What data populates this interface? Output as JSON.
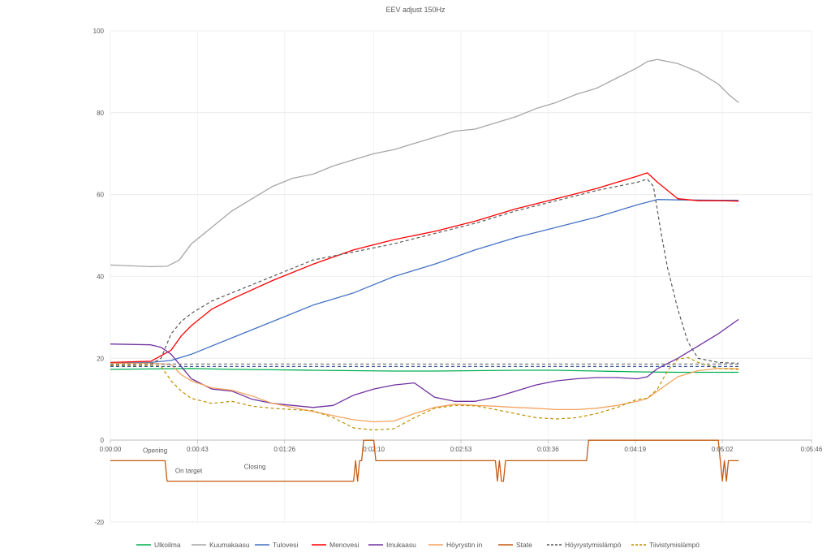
{
  "chart_data": {
    "type": "line",
    "title": "EEV adjust 150Hz",
    "xlabel": "",
    "ylabel": "",
    "ylim": [
      -20,
      100
    ],
    "y_ticks": [
      "100",
      "80",
      "60",
      "40",
      "20",
      "0",
      "-20"
    ],
    "x_ticks": [
      "0:00:00",
      "0:00:43",
      "0:01:26",
      "0:02:10",
      "0:02:53",
      "0:03:36",
      "0:04:19",
      "0:05:02",
      "0:05:46"
    ],
    "x_tick_values": [
      0,
      43,
      86,
      130,
      173,
      216,
      259,
      302,
      346
    ],
    "xlim": [
      0,
      346
    ],
    "grid": true,
    "legend_position": "bottom",
    "annotations": [
      {
        "text": "Opening",
        "x": 16,
        "y": -3
      },
      {
        "text": "On target",
        "x": 32,
        "y": -8
      },
      {
        "text": "Closing",
        "x": 66,
        "y": -7
      }
    ],
    "series": [
      {
        "name": "Ulkoilma",
        "color": "#00b050",
        "style": "solid",
        "x": [
          0,
          20,
          40,
          60,
          80,
          100,
          120,
          140,
          160,
          180,
          200,
          220,
          240,
          260,
          280,
          300,
          310
        ],
        "y": [
          17.3,
          17.4,
          17.5,
          17.3,
          17.2,
          17.1,
          17.0,
          16.9,
          16.9,
          17.0,
          17.1,
          17.1,
          16.9,
          16.7,
          16.6,
          16.6,
          16.6
        ]
      },
      {
        "name": "Kuumakaasu",
        "color": "#a6a6a6",
        "style": "solid",
        "x": [
          0,
          10,
          20,
          28,
          34,
          40,
          50,
          60,
          70,
          80,
          90,
          100,
          110,
          120,
          130,
          140,
          150,
          160,
          170,
          180,
          190,
          200,
          210,
          220,
          230,
          240,
          250,
          260,
          265,
          270,
          280,
          290,
          300,
          305,
          310
        ],
        "y": [
          42.8,
          42.6,
          42.4,
          42.5,
          44,
          48,
          52,
          56,
          59,
          62,
          64,
          65,
          67,
          68.5,
          70,
          71,
          72.5,
          74,
          75.5,
          76,
          77.5,
          79,
          81,
          82.5,
          84.5,
          86,
          88.5,
          91,
          92.5,
          93,
          92,
          90,
          87,
          84.5,
          82.5
        ]
      },
      {
        "name": "Tulovesi",
        "color": "#4472c4",
        "style": "solid",
        "x": [
          0,
          20,
          30,
          40,
          60,
          80,
          100,
          120,
          140,
          160,
          180,
          200,
          220,
          240,
          260,
          270,
          280,
          300,
          310
        ],
        "y": [
          19,
          19,
          19.5,
          21,
          25,
          29,
          33,
          36,
          40,
          43,
          46.5,
          49.5,
          52,
          54.5,
          57.5,
          58.8,
          58.7,
          58.6,
          58.6
        ]
      },
      {
        "name": "Menovesi",
        "color": "#ff0000",
        "style": "solid",
        "x": [
          0,
          20,
          30,
          35,
          40,
          50,
          60,
          80,
          100,
          120,
          140,
          160,
          180,
          200,
          220,
          240,
          260,
          265,
          270,
          280,
          290,
          300,
          310
        ],
        "y": [
          19,
          19.3,
          22,
          25.5,
          28,
          32,
          34.5,
          39,
          43,
          46.5,
          49,
          51,
          53.5,
          56.5,
          59,
          61.5,
          64.5,
          65.3,
          63,
          59,
          58.5,
          58.5,
          58.4
        ]
      },
      {
        "name": "Imukaasu",
        "color": "#7030a0",
        "style": "solid",
        "x": [
          0,
          10,
          20,
          25,
          30,
          35,
          40,
          50,
          60,
          70,
          80,
          90,
          100,
          110,
          120,
          130,
          140,
          150,
          160,
          170,
          180,
          190,
          200,
          210,
          220,
          230,
          240,
          250,
          260,
          265,
          270,
          280,
          290,
          300,
          310
        ],
        "y": [
          23.5,
          23.4,
          23.3,
          22.7,
          21,
          18,
          15,
          12.5,
          12,
          10,
          9,
          8.5,
          8,
          8.5,
          11,
          12.5,
          13.5,
          14,
          10.5,
          9.5,
          9.5,
          10.5,
          12,
          13.5,
          14.5,
          15,
          15.3,
          15.3,
          15,
          15.5,
          17.5,
          20,
          23,
          26,
          29.5
        ]
      },
      {
        "name": "Höyrystin in",
        "color": "#f4a460",
        "style": "solid",
        "x": [
          0,
          20,
          30,
          35,
          40,
          50,
          60,
          70,
          80,
          90,
          100,
          110,
          120,
          130,
          140,
          150,
          160,
          170,
          180,
          190,
          200,
          210,
          220,
          230,
          240,
          250,
          260,
          265,
          270,
          280,
          290,
          300,
          310
        ],
        "y": [
          18.8,
          18.8,
          18.5,
          16,
          14.5,
          12.8,
          12.2,
          10.8,
          9,
          8,
          7,
          6,
          5,
          4.5,
          4.7,
          6.5,
          8,
          8.8,
          8.5,
          8.3,
          8,
          7.8,
          7.5,
          7.5,
          7.8,
          8.5,
          9.5,
          10.2,
          12,
          15.5,
          17,
          17.5,
          17.5
        ]
      },
      {
        "name": "State",
        "color": "#c55a11",
        "style": "solid",
        "x": [
          0,
          27,
          28,
          29,
          120,
          121,
          122,
          123,
          124,
          125,
          130,
          131,
          190,
          191,
          192,
          193,
          194,
          195,
          235,
          236,
          300,
          301,
          302,
          303,
          304,
          305,
          310
        ],
        "y": [
          -5,
          -5,
          -10,
          -10,
          -10,
          -5,
          -10,
          -5,
          -5,
          0,
          0,
          -5,
          -5,
          -10,
          -5,
          -10,
          -10,
          -5,
          -5,
          0,
          0,
          -5,
          -10,
          -5,
          -10,
          -5,
          -5
        ]
      },
      {
        "name": "Höyrystymislämpö",
        "color": "#595959",
        "style": "dashed",
        "x": [
          0,
          20,
          25,
          30,
          35,
          40,
          50,
          60,
          80,
          100,
          120,
          140,
          160,
          180,
          200,
          220,
          240,
          260,
          265,
          268,
          270,
          272,
          275,
          280,
          285,
          290,
          300,
          310
        ],
        "y": [
          18.5,
          18.6,
          20,
          26,
          29,
          31,
          34,
          36,
          40,
          44,
          46,
          48,
          50.5,
          53,
          56,
          58.5,
          61,
          63,
          63.8,
          62,
          56,
          50,
          42,
          32,
          24,
          20,
          19,
          18.8
        ]
      },
      {
        "name": "Tiivistymislämpö",
        "color": "#bf8f00",
        "style": "dashed",
        "x": [
          0,
          20,
          25,
          30,
          35,
          40,
          50,
          60,
          70,
          80,
          90,
          100,
          110,
          120,
          130,
          140,
          150,
          160,
          170,
          180,
          190,
          200,
          210,
          220,
          230,
          240,
          250,
          260,
          265,
          270,
          275,
          280,
          285,
          290,
          300,
          310
        ],
        "y": [
          18.2,
          18.3,
          18.1,
          14.5,
          12,
          10.2,
          9,
          9.5,
          8.3,
          7.8,
          7.5,
          7.2,
          5.5,
          3,
          2.5,
          2.8,
          5.5,
          7.8,
          8.5,
          8.4,
          7.5,
          6.5,
          5.5,
          5.2,
          5.5,
          6.5,
          8,
          10,
          10.2,
          12.5,
          17,
          19.8,
          20.2,
          19,
          17.5,
          17.3
        ]
      },
      {
        "name": "",
        "color": "#808080",
        "style": "dashed",
        "x": [
          0,
          310
        ],
        "y": [
          18.6,
          18.6
        ]
      },
      {
        "name": "",
        "color": "#2f5597",
        "style": "dashed",
        "x": [
          0,
          310
        ],
        "y": [
          18.0,
          18.0
        ]
      }
    ]
  }
}
